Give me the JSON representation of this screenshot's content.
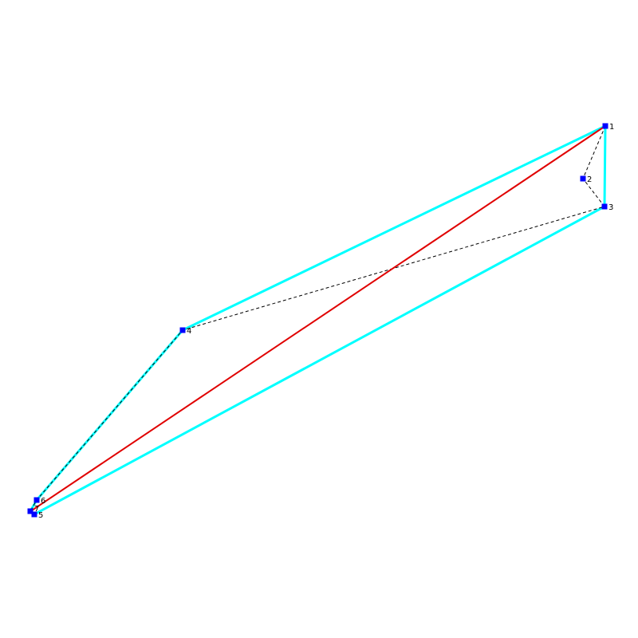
{
  "nodes": [
    {
      "label": "1"
    },
    {
      "label": "2"
    },
    {
      "label": "3"
    },
    {
      "label": "4"
    },
    {
      "label": "5"
    },
    {
      "label": "6"
    },
    {
      "label": "7"
    }
  ]
}
